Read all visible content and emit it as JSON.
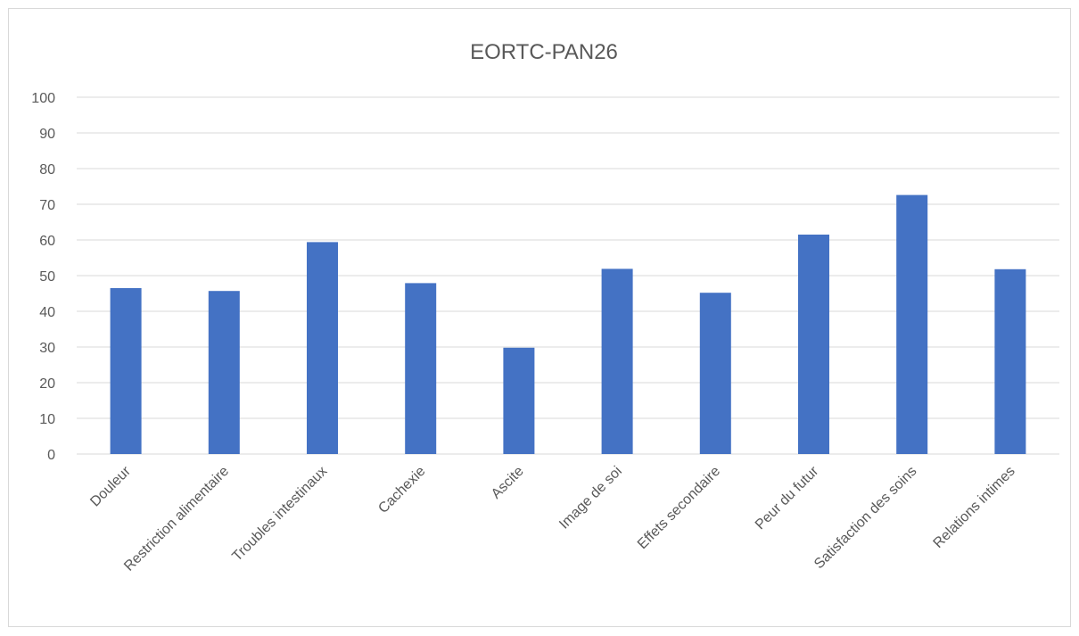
{
  "chart_data": {
    "type": "bar",
    "title": "EORTC-PAN26",
    "xlabel": "",
    "ylabel": "",
    "categories": [
      "Douleur",
      "Restriction alimentaire",
      "Troubles intestinaux",
      "Cachexie",
      "Ascite",
      "Image de soi",
      "Effets secondaire",
      "Peur du futur",
      "Satisfaction des soins",
      "Relations intimes"
    ],
    "values": [
      46.5,
      45.7,
      59.4,
      47.9,
      29.8,
      51.9,
      45.2,
      61.5,
      72.6,
      51.8
    ],
    "ylim": [
      0,
      100
    ],
    "yticks": [
      0,
      10,
      20,
      30,
      40,
      50,
      60,
      70,
      80,
      90,
      100
    ],
    "grid": true,
    "legend": "none",
    "bar_color": "#4472C4"
  }
}
